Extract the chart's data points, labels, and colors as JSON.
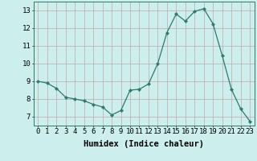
{
  "x": [
    0,
    1,
    2,
    3,
    4,
    5,
    6,
    7,
    8,
    9,
    10,
    11,
    12,
    13,
    14,
    15,
    16,
    17,
    18,
    19,
    20,
    21,
    22,
    23
  ],
  "y": [
    9.0,
    8.9,
    8.6,
    8.1,
    8.0,
    7.9,
    7.7,
    7.55,
    7.1,
    7.35,
    8.5,
    8.55,
    8.85,
    10.0,
    11.75,
    12.8,
    12.4,
    12.95,
    13.1,
    12.25,
    10.45,
    8.55,
    7.45,
    6.75
  ],
  "line_color": "#2d7a6e",
  "marker": "D",
  "marker_size": 2.2,
  "bg_color": "#cceeed",
  "grid_color": "#c0a8a8",
  "xlabel": "Humidex (Indice chaleur)",
  "xlabel_fontsize": 7.5,
  "tick_fontsize": 6.5,
  "ylim": [
    6.5,
    13.5
  ],
  "xlim": [
    -0.5,
    23.5
  ],
  "yticks": [
    7,
    8,
    9,
    10,
    11,
    12,
    13
  ],
  "xticks": [
    0,
    1,
    2,
    3,
    4,
    5,
    6,
    7,
    8,
    9,
    10,
    11,
    12,
    13,
    14,
    15,
    16,
    17,
    18,
    19,
    20,
    21,
    22,
    23
  ]
}
